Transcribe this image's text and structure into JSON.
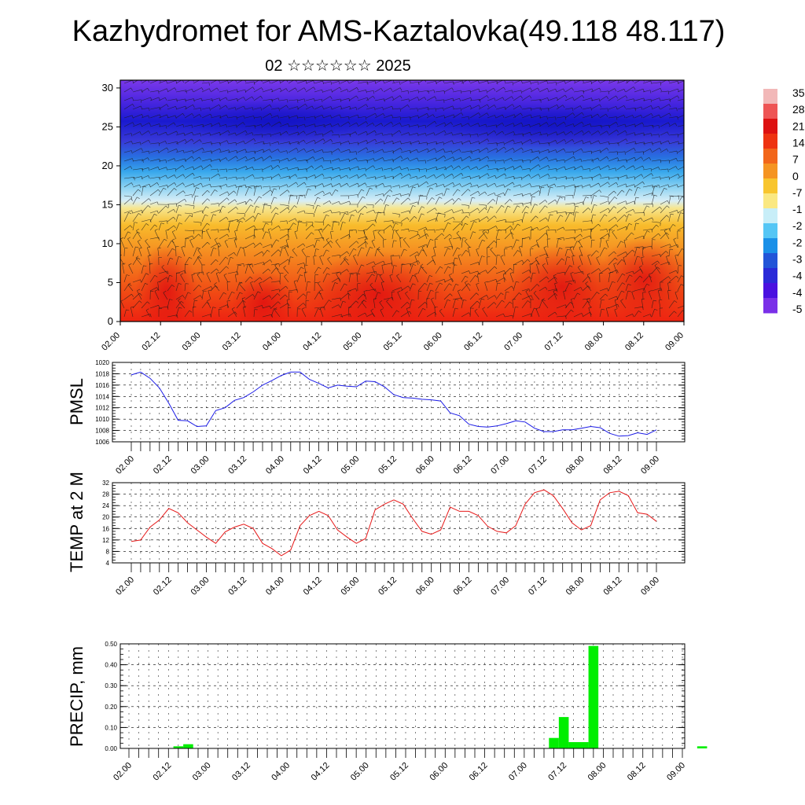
{
  "header": {
    "title": "Kazhydromet for AMS-Kaztalovka(49.118 48.117)",
    "subtitle": "02 ☆☆☆☆☆☆ 2025"
  },
  "colors": {
    "pmsl_line": "#1a1ae6",
    "temp_line": "#e61a1a",
    "precip_bar": "#00ee00",
    "wind_barbs": "#1a1a1a"
  },
  "chart_data": [
    {
      "type": "heatmap",
      "name": "cross-section",
      "xlabel": "",
      "ylabel": "",
      "x_ticks": [
        "02.00",
        "02.12",
        "03.00",
        "03.12",
        "04.00",
        "04.12",
        "05.00",
        "05.12",
        "06.00",
        "06.12",
        "07.00",
        "07.12",
        "08.00",
        "08.12",
        "09.00"
      ],
      "y_ticks": [
        0,
        5,
        10,
        15,
        20,
        25,
        30
      ],
      "ylim": [
        0,
        31
      ],
      "colorbar_labels": [
        "35",
        "28",
        "21",
        "14",
        "7",
        "0",
        "-7",
        "-1",
        "-2",
        "-2",
        "-3",
        "-4",
        "-4",
        "-5"
      ],
      "colorbar_colors": [
        "#f2b8b8",
        "#ee5555",
        "#dd1111",
        "#ee3311",
        "#f2661a",
        "#f59422",
        "#f8c52e",
        "#fae882",
        "#c8eef8",
        "#55c6f5",
        "#1a90e8",
        "#2255d8",
        "#2a2ad8",
        "#4a10e0",
        "#7a30e8"
      ],
      "overlay": "wind barbs"
    },
    {
      "type": "line",
      "name": "PMSL",
      "ylabel": "PMSL",
      "ylim": [
        1006,
        1020
      ],
      "y_ticks": [
        1006,
        1008,
        1010,
        1012,
        1014,
        1016,
        1018,
        1020
      ],
      "x_ticks": [
        "02.00",
        "02.12",
        "03.00",
        "03.12",
        "04.00",
        "04.12",
        "05.00",
        "05.12",
        "06.00",
        "06.12",
        "07.00",
        "07.12",
        "08.00",
        "08.12",
        "09.00"
      ],
      "x": [
        0,
        3,
        6,
        9,
        12,
        15,
        18,
        21,
        24,
        27,
        30,
        33,
        36,
        39,
        42,
        45,
        48,
        51,
        54,
        57,
        60,
        63,
        66,
        69,
        72,
        75,
        78,
        81,
        84,
        87,
        90,
        93,
        96,
        99,
        102,
        105,
        108,
        111,
        114,
        117,
        120,
        123,
        126,
        129,
        132,
        135,
        138,
        141,
        144,
        147,
        150,
        153,
        156,
        159,
        162,
        165,
        168
      ],
      "values": [
        1017.8,
        1018.3,
        1017.2,
        1015.5,
        1012.8,
        1009.8,
        1009.7,
        1008.7,
        1008.8,
        1011.5,
        1012.0,
        1013.3,
        1013.8,
        1014.8,
        1016.0,
        1016.8,
        1017.7,
        1018.3,
        1018.3,
        1017.0,
        1016.3,
        1015.5,
        1016.0,
        1015.8,
        1015.7,
        1016.7,
        1016.6,
        1015.7,
        1014.3,
        1013.8,
        1013.7,
        1013.5,
        1013.4,
        1013.2,
        1011.1,
        1010.6,
        1009.1,
        1008.7,
        1008.6,
        1008.8,
        1009.2,
        1009.7,
        1009.5,
        1008.4,
        1007.8,
        1007.8,
        1008.1,
        1008.1,
        1008.4,
        1008.7,
        1008.5,
        1007.5,
        1007.0,
        1007.1,
        1007.6,
        1007.3,
        1008.1
      ]
    },
    {
      "type": "line",
      "name": "TEMP at 2 M",
      "ylabel": "TEMP at 2 M",
      "ylim": [
        4,
        32
      ],
      "y_ticks": [
        4,
        8,
        12,
        16,
        20,
        24,
        28,
        32
      ],
      "x_ticks": [
        "02.00",
        "02.12",
        "03.00",
        "03.12",
        "04.00",
        "04.12",
        "05.00",
        "05.12",
        "06.00",
        "06.12",
        "07.00",
        "07.12",
        "08.00",
        "08.12",
        "09.00"
      ],
      "x": [
        0,
        3,
        6,
        9,
        12,
        15,
        18,
        21,
        24,
        27,
        30,
        33,
        36,
        39,
        42,
        45,
        48,
        51,
        54,
        57,
        60,
        63,
        66,
        69,
        72,
        75,
        78,
        81,
        84,
        87,
        90,
        93,
        96,
        99,
        102,
        105,
        108,
        111,
        114,
        117,
        120,
        123,
        126,
        129,
        132,
        135,
        138,
        141,
        144,
        147,
        150,
        153,
        156,
        159,
        162,
        165,
        168
      ],
      "values": [
        11.5,
        12.0,
        16.5,
        19.0,
        23.0,
        21.5,
        18.0,
        15.5,
        13.0,
        10.8,
        14.8,
        16.5,
        17.5,
        16.0,
        10.8,
        9.0,
        6.5,
        8.5,
        17.0,
        20.5,
        22.0,
        20.5,
        15.5,
        13.0,
        10.8,
        12.5,
        22.5,
        24.5,
        26.0,
        24.5,
        19.5,
        15.0,
        14.0,
        15.5,
        23.5,
        22.0,
        22.0,
        20.5,
        16.8,
        15.0,
        14.5,
        17.0,
        24.5,
        28.5,
        29.5,
        27.5,
        23.0,
        18.0,
        15.5,
        17.0,
        26.0,
        28.5,
        29.0,
        27.5,
        21.5,
        21.0,
        18.5
      ]
    },
    {
      "type": "bar",
      "name": "PRECIP, mm",
      "ylabel": "PRECIP, mm",
      "ylim": [
        0,
        0.5
      ],
      "y_ticks": [
        "0.00",
        "0.10",
        "0.20",
        "0.30",
        "0.40",
        "0.50"
      ],
      "x_ticks": [
        "02.00",
        "02.12",
        "03.00",
        "03.12",
        "04.00",
        "04.12",
        "05.00",
        "05.12",
        "06.00",
        "06.12",
        "07.00",
        "07.12",
        "08.00",
        "08.12",
        "09.00"
      ],
      "x": [
        15,
        18,
        129,
        132,
        135,
        138,
        141,
        174
      ],
      "values": [
        0.01,
        0.02,
        0.05,
        0.15,
        0.03,
        0.03,
        0.49,
        0.01
      ],
      "bar_width_hours": 3
    }
  ]
}
